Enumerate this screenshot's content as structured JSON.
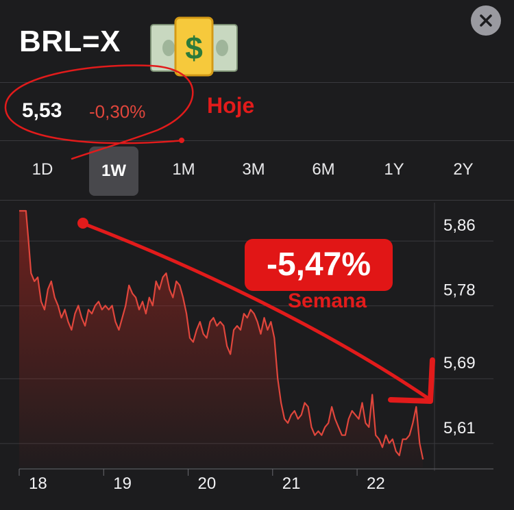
{
  "header": {
    "ticker": "BRL=X",
    "icon": "money-bag-dollar-icon"
  },
  "quote": {
    "price": "5,53",
    "change": "-0,30%",
    "annotation": "Hoje"
  },
  "tabs": [
    "1D",
    "1W",
    "1M",
    "3M",
    "6M",
    "1Y",
    "2Y"
  ],
  "active_tab": "1W",
  "badge": {
    "value": "-5,47%",
    "caption": "Semana"
  },
  "colors": {
    "background": "#1c1c1e",
    "line": "#e0463c",
    "annotation": "#e21b1b"
  },
  "chart_data": {
    "type": "area",
    "x_tick_labels": [
      "18",
      "19",
      "20",
      "21",
      "22"
    ],
    "y_tick_labels": [
      "5,86",
      "5,78",
      "5,69",
      "5,61"
    ],
    "y_ticks": [
      5.86,
      5.78,
      5.69,
      5.61
    ],
    "ylim": [
      5.56,
      5.877
    ],
    "xlim": [
      18,
      22.9
    ],
    "grid": true,
    "y_axis_side": "right",
    "x": [
      18.0,
      18.08,
      18.11,
      18.14,
      18.18,
      18.22,
      18.26,
      18.3,
      18.34,
      18.38,
      18.42,
      18.46,
      18.5,
      18.54,
      18.58,
      18.62,
      18.66,
      18.7,
      18.74,
      18.78,
      18.82,
      18.86,
      18.9,
      18.94,
      18.98,
      19.02,
      19.06,
      19.1,
      19.14,
      19.18,
      19.22,
      19.26,
      19.3,
      19.34,
      19.38,
      19.42,
      19.46,
      19.5,
      19.54,
      19.58,
      19.62,
      19.66,
      19.7,
      19.74,
      19.78,
      19.82,
      19.86,
      19.9,
      19.94,
      19.98,
      20.02,
      20.06,
      20.1,
      20.14,
      20.18,
      20.22,
      20.26,
      20.3,
      20.34,
      20.38,
      20.42,
      20.46,
      20.5,
      20.54,
      20.58,
      20.62,
      20.66,
      20.7,
      20.74,
      20.78,
      20.82,
      20.86,
      20.9,
      20.94,
      20.98,
      21.02,
      21.06,
      21.1,
      21.14,
      21.18,
      21.22,
      21.26,
      21.3,
      21.34,
      21.38,
      21.42,
      21.46,
      21.5,
      21.54,
      21.58,
      21.62,
      21.66,
      21.7,
      21.74,
      21.78,
      21.82,
      21.86,
      21.9,
      21.94,
      21.98,
      22.02,
      22.06,
      22.1,
      22.14,
      22.18,
      22.22,
      22.26,
      22.3,
      22.34,
      22.38,
      22.42,
      22.46,
      22.5,
      22.54,
      22.58,
      22.62,
      22.66,
      22.7,
      22.74,
      22.78
    ],
    "values": [
      5.877,
      5.877,
      5.84,
      5.8,
      5.79,
      5.795,
      5.765,
      5.755,
      5.78,
      5.79,
      5.77,
      5.76,
      5.745,
      5.755,
      5.74,
      5.73,
      5.75,
      5.76,
      5.745,
      5.735,
      5.755,
      5.75,
      5.76,
      5.765,
      5.755,
      5.76,
      5.755,
      5.76,
      5.74,
      5.73,
      5.745,
      5.76,
      5.785,
      5.775,
      5.77,
      5.755,
      5.765,
      5.75,
      5.77,
      5.76,
      5.79,
      5.78,
      5.795,
      5.8,
      5.78,
      5.77,
      5.79,
      5.785,
      5.77,
      5.75,
      5.72,
      5.715,
      5.73,
      5.74,
      5.725,
      5.72,
      5.74,
      5.745,
      5.735,
      5.74,
      5.735,
      5.71,
      5.7,
      5.73,
      5.735,
      5.73,
      5.75,
      5.745,
      5.755,
      5.75,
      5.74,
      5.725,
      5.745,
      5.73,
      5.74,
      5.72,
      5.67,
      5.64,
      5.62,
      5.615,
      5.625,
      5.63,
      5.62,
      5.625,
      5.64,
      5.635,
      5.61,
      5.6,
      5.605,
      5.6,
      5.61,
      5.615,
      5.635,
      5.62,
      5.61,
      5.6,
      5.6,
      5.62,
      5.63,
      5.625,
      5.62,
      5.64,
      5.615,
      5.61,
      5.65,
      5.6,
      5.595,
      5.585,
      5.6,
      5.59,
      5.595,
      5.58,
      5.575,
      5.595,
      5.595,
      5.6,
      5.615,
      5.635,
      5.59,
      5.57
    ]
  }
}
